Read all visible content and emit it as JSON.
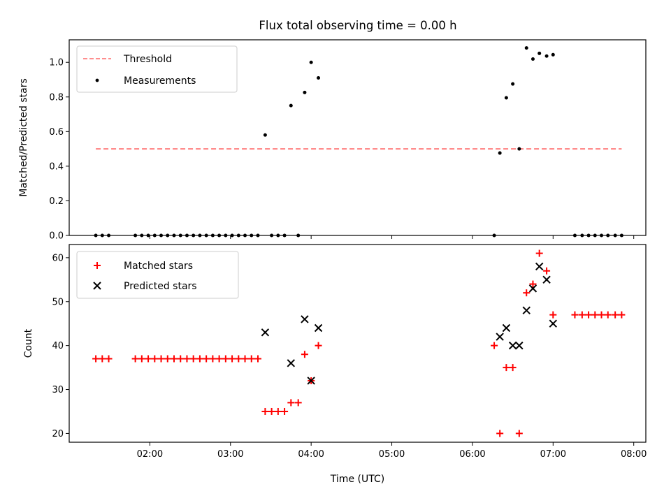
{
  "chart_data": [
    {
      "type": "scatter",
      "panel": "ratio",
      "title": "Flux total observing time = 0.00 h",
      "xlabel": "",
      "ylabel": "Matched/Predicted stars",
      "ylim": [
        0.0,
        1.13
      ],
      "yticks": [
        0.0,
        0.2,
        0.4,
        0.6,
        0.8,
        1.0
      ],
      "ytick_labels": [
        "0.0",
        "0.2",
        "0.4",
        "0.6",
        "0.8",
        "1.0"
      ],
      "xlim_hours": [
        1.0,
        8.15
      ],
      "xticks_hours": [
        2,
        3,
        4,
        5,
        6,
        7,
        8
      ],
      "tick_labels_visible": false,
      "legend_position": "upper left",
      "series": [
        {
          "name": "Threshold",
          "style": "dashed-line",
          "color": "#ff7f7f",
          "x_hours": [
            1.33,
            7.85
          ],
          "y": [
            0.5,
            0.5
          ]
        },
        {
          "name": "Measurements",
          "style": "dot",
          "color": "#000000",
          "x_hours": [
            1.33,
            1.41,
            1.49,
            1.82,
            1.9,
            1.98,
            2.06,
            2.14,
            2.22,
            2.3,
            2.38,
            2.46,
            2.54,
            2.62,
            2.7,
            2.78,
            2.86,
            2.94,
            3.02,
            3.1,
            3.18,
            3.26,
            3.34,
            3.43,
            3.51,
            3.59,
            3.67,
            3.75,
            3.84,
            3.92,
            4.0,
            4.09,
            6.27,
            6.34,
            6.42,
            6.5,
            6.58,
            6.67,
            6.75,
            6.83,
            6.92,
            7.0,
            7.27,
            7.36,
            7.44,
            7.52,
            7.6,
            7.68,
            7.77,
            7.85
          ],
          "y": [
            0,
            0,
            0,
            0,
            0,
            0,
            0,
            0,
            0,
            0,
            0,
            0,
            0,
            0,
            0,
            0,
            0,
            0,
            0,
            0,
            0,
            0,
            0,
            0.58,
            0,
            0,
            0,
            0.75,
            0,
            0.826,
            1.0,
            0.91,
            0,
            0.476,
            0.795,
            0.875,
            0.5,
            1.083,
            1.019,
            1.052,
            1.036,
            1.044,
            0,
            0,
            0,
            0,
            0,
            0,
            0,
            0
          ]
        }
      ]
    },
    {
      "type": "scatter",
      "panel": "counts",
      "title": "",
      "xlabel": "Time (UTC)",
      "ylabel": "Count",
      "ylim": [
        18,
        63
      ],
      "yticks": [
        20,
        30,
        40,
        50,
        60
      ],
      "ytick_labels": [
        "20",
        "30",
        "40",
        "50",
        "60"
      ],
      "xlim_hours": [
        1.0,
        8.15
      ],
      "xticks_hours": [
        2,
        3,
        4,
        5,
        6,
        7,
        8
      ],
      "xtick_labels": [
        "02:00",
        "03:00",
        "04:00",
        "05:00",
        "06:00",
        "07:00",
        "08:00"
      ],
      "legend_position": "upper left",
      "series": [
        {
          "name": "Matched stars",
          "marker": "plus",
          "color": "#ff0000",
          "x_hours": [
            1.33,
            1.41,
            1.49,
            1.82,
            1.9,
            1.98,
            2.06,
            2.14,
            2.22,
            2.3,
            2.38,
            2.46,
            2.54,
            2.62,
            2.7,
            2.78,
            2.86,
            2.94,
            3.02,
            3.1,
            3.18,
            3.26,
            3.34,
            3.43,
            3.51,
            3.59,
            3.67,
            3.75,
            3.84,
            3.92,
            4.0,
            4.09,
            6.27,
            6.34,
            6.42,
            6.5,
            6.58,
            6.67,
            6.75,
            6.83,
            6.92,
            7.0,
            7.27,
            7.36,
            7.44,
            7.52,
            7.6,
            7.68,
            7.77,
            7.85
          ],
          "y": [
            37,
            37,
            37,
            37,
            37,
            37,
            37,
            37,
            37,
            37,
            37,
            37,
            37,
            37,
            37,
            37,
            37,
            37,
            37,
            37,
            37,
            37,
            37,
            25,
            25,
            25,
            25,
            27,
            27,
            38,
            32,
            40,
            40,
            20,
            35,
            35,
            20,
            52,
            54,
            61,
            57,
            47,
            47,
            47,
            47,
            47,
            47,
            47,
            47,
            47
          ]
        },
        {
          "name": "Predicted stars",
          "marker": "x",
          "color": "#000000",
          "x_hours": [
            3.43,
            3.75,
            3.92,
            4.0,
            4.09,
            6.34,
            6.42,
            6.5,
            6.58,
            6.67,
            6.75,
            6.83,
            6.92,
            7.0
          ],
          "y": [
            43,
            36,
            46,
            32,
            44,
            42,
            44,
            40,
            40,
            48,
            53,
            58,
            55,
            45
          ]
        }
      ]
    }
  ]
}
